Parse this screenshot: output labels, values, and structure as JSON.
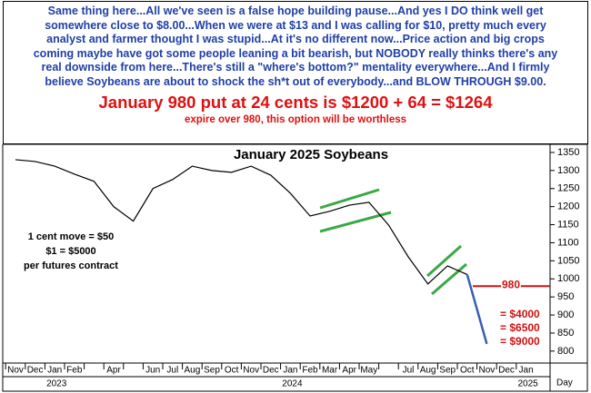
{
  "header": {
    "lines": [
      "Same thing here...All we've seen is a false hope building pause...And yes I DO think well get",
      "somewhere close to $8.00...When we were at $13 and I was calling for $10, pretty much every",
      "analyst and farmer thought I was stupid...At it's no different now...Price action and big crops",
      "coming maybe have got some people leaning a bit bearish, but NOBODY really thinks there's any",
      "real downside from here...There's still a \"where's  bottom?\" mentality everywhere...And I firmly",
      "believe Soybeans are about to shock the sh*t out of everybody...and BLOW THROUGH $9.00."
    ],
    "headline": "January 980 put at 24 cents is $1200 + 64 = $1264",
    "subline": "expire over 980, this option will be worthless"
  },
  "chart_data": {
    "type": "line",
    "title": "January 2025 Soybeans",
    "categories": [
      "Nov",
      "Dec",
      "Jan",
      "Feb",
      null,
      "Apr",
      null,
      "Jun",
      "Jul",
      "Aug",
      "Sep",
      "Oct",
      "Nov",
      "Dec",
      "Jan",
      "Feb",
      "Mar",
      "Apr",
      "May",
      null,
      "Jul",
      "Aug",
      "Sep",
      "Oct",
      "Nov",
      "Dec",
      "Jan"
    ],
    "years": [
      null,
      null,
      "2023",
      null,
      null,
      null,
      null,
      null,
      null,
      null,
      null,
      null,
      null,
      null,
      "2024",
      null,
      null,
      null,
      null,
      null,
      null,
      null,
      null,
      null,
      null,
      null,
      "2025"
    ],
    "x_unit": "Day",
    "series": [
      {
        "color": "#000000",
        "values": [
          1330,
          1325,
          1312,
          1290,
          1270,
          1200,
          1160,
          1250,
          1275,
          1312,
          1300,
          1295,
          1312,
          1287,
          1237,
          1174,
          1187,
          1204,
          1212,
          1149,
          1061,
          986,
          1036,
          1012,
          null,
          null,
          null
        ]
      },
      {
        "color": "#3a5fb0",
        "values": [
          null,
          null,
          null,
          null,
          null,
          null,
          null,
          null,
          null,
          null,
          null,
          null,
          null,
          null,
          null,
          null,
          null,
          null,
          null,
          null,
          null,
          null,
          null,
          1012,
          820,
          null,
          null
        ]
      }
    ],
    "levels": [
      {
        "value": 980,
        "label": "980"
      },
      {
        "value": 900,
        "label": "= $4000"
      },
      {
        "value": 863,
        "label": "= $6500"
      },
      {
        "value": 825,
        "label": "= $9000"
      }
    ],
    "notes": [
      "1 cent move = $50",
      "$1 = $5000",
      "per futures contract"
    ],
    "ylim": [
      772,
      1370
    ],
    "yticks": [
      800,
      850,
      900,
      950,
      1000,
      1050,
      1100,
      1150,
      1200,
      1250,
      1300,
      1350
    ]
  }
}
